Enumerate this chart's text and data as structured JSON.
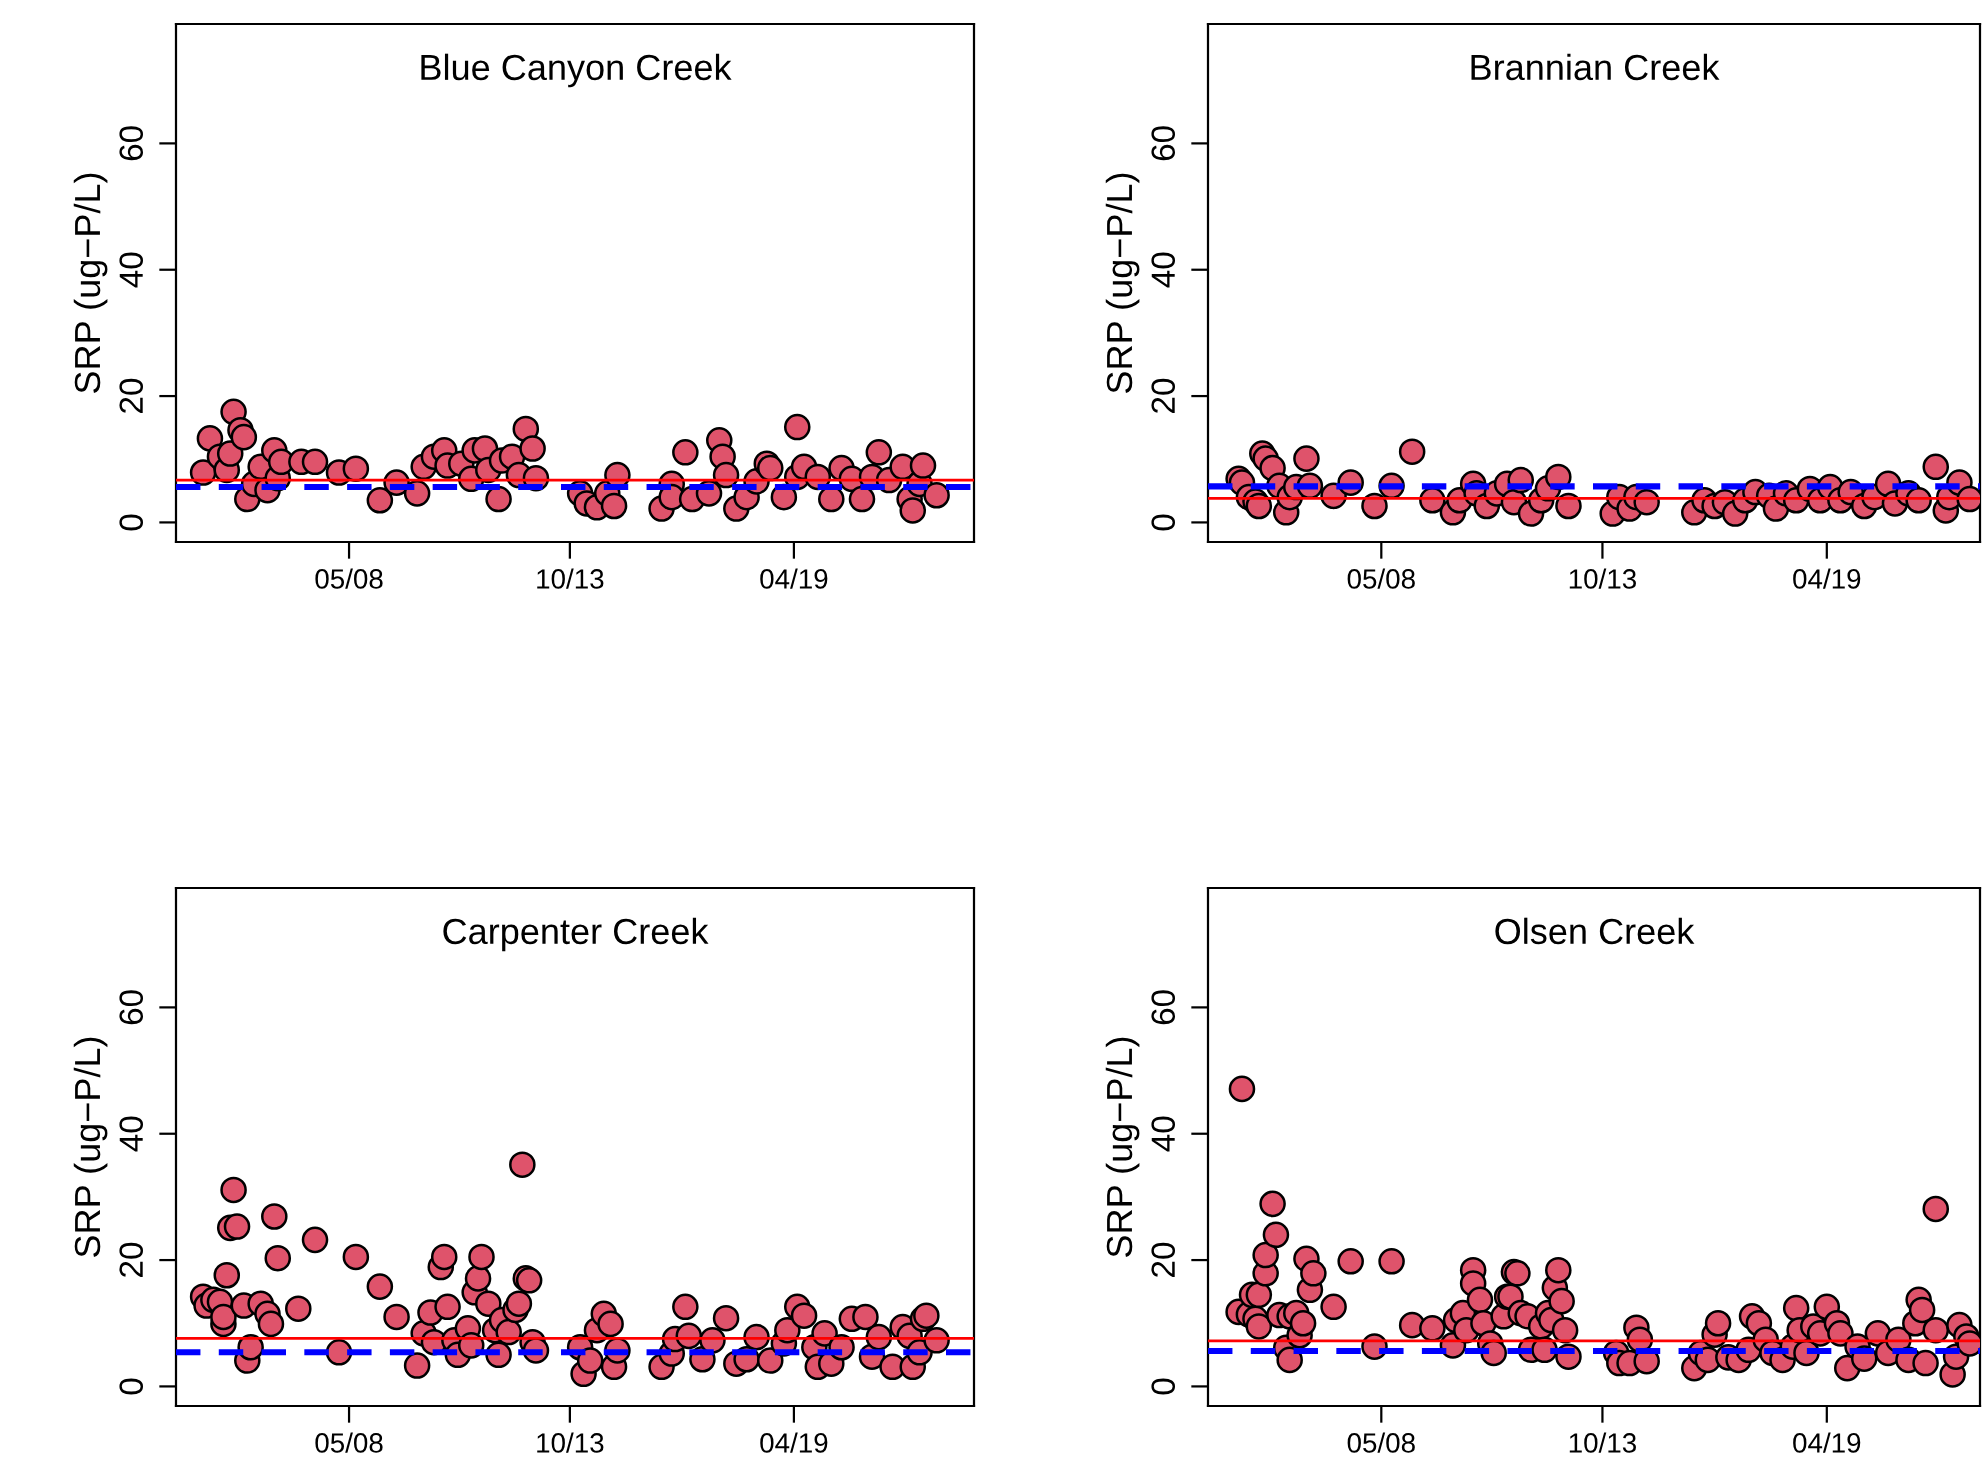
{
  "chart_data": [
    {
      "type": "scatter",
      "title": "Blue Canyon Creek",
      "ylabel": "SRP (ug−P/L)",
      "marker": "circle",
      "grid": false,
      "legend": false,
      "xlim": [
        "2004-02",
        "2023-09"
      ],
      "xticks": [
        {
          "value": "2008-05",
          "label": "05/08"
        },
        {
          "value": "2013-10",
          "label": "10/13"
        },
        {
          "value": "2019-04",
          "label": "04/19"
        }
      ],
      "ylim": [
        -3.1,
        78.9
      ],
      "yticks": [
        0,
        20,
        40,
        60
      ],
      "ref_lines": [
        {
          "axis": "y",
          "value": 6.7,
          "color": "#ff0000",
          "line_style": "solid"
        },
        {
          "axis": "y",
          "value": 5.6,
          "color": "#0000ff",
          "line_style": "dashed"
        }
      ],
      "series": [
        {
          "color": "#df536b",
          "x": [
            "2004-10",
            "2004-12",
            "2005-03",
            "2005-05",
            "2005-06",
            "2005-07",
            "2005-09",
            "2005-10",
            "2005-11",
            "2006-01",
            "2006-03",
            "2006-05",
            "2006-07",
            "2006-08",
            "2006-09",
            "2007-03",
            "2007-07",
            "2008-02",
            "2008-07",
            "2009-02",
            "2009-07",
            "2010-01",
            "2010-03",
            "2010-06",
            "2010-09",
            "2010-10",
            "2011-02",
            "2011-05",
            "2011-06",
            "2011-09",
            "2011-10",
            "2012-01",
            "2012-02",
            "2012-05",
            "2012-07",
            "2012-09",
            "2012-11",
            "2012-12",
            "2014-01",
            "2014-03",
            "2014-06",
            "2014-09",
            "2014-11",
            "2014-12",
            "2016-01",
            "2016-04",
            "2016-04",
            "2016-08",
            "2016-10",
            "2017-03",
            "2017-06",
            "2017-07",
            "2017-08",
            "2017-11",
            "2018-02",
            "2018-05",
            "2018-08",
            "2018-09",
            "2019-01",
            "2019-05",
            "2019-05",
            "2019-07",
            "2019-11",
            "2020-03",
            "2020-06",
            "2020-09",
            "2020-12",
            "2021-03",
            "2021-05",
            "2021-08",
            "2021-12",
            "2022-02",
            "2022-03",
            "2022-05",
            "2022-06",
            "2022-10"
          ],
          "values": [
            7.9,
            13.3,
            10.4,
            8.3,
            10.9,
            17.5,
            14.6,
            13.5,
            3.7,
            6.1,
            8.8,
            5.1,
            11.4,
            7.0,
            9.6,
            9.6,
            9.6,
            7.9,
            8.5,
            3.5,
            6.3,
            4.6,
            8.8,
            10.4,
            11.4,
            9.0,
            9.3,
            6.9,
            11.4,
            11.7,
            8.3,
            3.7,
            9.8,
            10.4,
            7.5,
            14.8,
            11.7,
            7.0,
            4.6,
            3.0,
            2.4,
            4.6,
            2.6,
            7.5,
            2.2,
            6.1,
            4.0,
            11.1,
            3.7,
            4.6,
            13.0,
            10.4,
            7.5,
            2.2,
            4.0,
            6.5,
            9.3,
            8.6,
            4.0,
            15.1,
            7.2,
            8.8,
            7.2,
            3.7,
            8.6,
            6.9,
            3.7,
            7.2,
            11.1,
            6.7,
            8.8,
            3.7,
            1.9,
            6.1,
            9.0,
            4.3
          ]
        }
      ]
    },
    {
      "type": "scatter",
      "title": "Brannian Creek",
      "ylabel": "SRP (ug−P/L)",
      "marker": "circle",
      "grid": false,
      "legend": false,
      "xlim": [
        "2004-02",
        "2023-01"
      ],
      "xticks": [
        {
          "value": "2008-05",
          "label": "05/08"
        },
        {
          "value": "2013-10",
          "label": "10/13"
        },
        {
          "value": "2019-04",
          "label": "04/19"
        }
      ],
      "ylim": [
        -3.1,
        78.9
      ],
      "yticks": [
        0,
        20,
        40,
        60
      ],
      "ref_lines": [
        {
          "axis": "y",
          "value": 3.8,
          "color": "#ff0000",
          "line_style": "solid"
        },
        {
          "axis": "y",
          "value": 5.7,
          "color": "#0000ff",
          "line_style": "dashed"
        }
      ],
      "series": [
        {
          "color": "#df536b",
          "x": [
            "2004-11",
            "2004-12",
            "2005-02",
            "2005-04",
            "2005-05",
            "2005-06",
            "2005-07",
            "2005-09",
            "2005-11",
            "2006-01",
            "2006-02",
            "2006-04",
            "2006-07",
            "2006-08",
            "2007-03",
            "2007-08",
            "2008-03",
            "2008-08",
            "2009-02",
            "2009-08",
            "2010-02",
            "2010-04",
            "2010-08",
            "2010-09",
            "2010-12",
            "2011-03",
            "2011-06",
            "2011-08",
            "2011-10",
            "2012-01",
            "2012-04",
            "2012-06",
            "2012-09",
            "2012-12",
            "2014-01",
            "2014-03",
            "2014-06",
            "2014-08",
            "2014-11",
            "2016-01",
            "2016-04",
            "2016-07",
            "2016-10",
            "2017-01",
            "2017-04",
            "2017-07",
            "2017-11",
            "2018-01",
            "2018-04",
            "2018-07",
            "2018-11",
            "2019-02",
            "2019-05",
            "2019-08",
            "2019-11",
            "2020-03",
            "2020-06",
            "2020-10",
            "2020-12",
            "2021-04",
            "2021-07",
            "2021-12",
            "2022-03",
            "2022-04",
            "2022-07",
            "2022-10"
          ],
          "values": [
            6.9,
            6.3,
            4.0,
            3.3,
            2.6,
            10.9,
            10.1,
            8.6,
            5.8,
            1.6,
            4.0,
            5.6,
            10.1,
            5.8,
            4.2,
            6.3,
            2.6,
            5.8,
            11.2,
            3.5,
            1.6,
            3.5,
            6.1,
            4.6,
            2.6,
            4.6,
            6.1,
            3.2,
            6.7,
            1.4,
            3.5,
            5.4,
            7.2,
            2.6,
            1.4,
            4.0,
            2.2,
            4.0,
            3.2,
            1.6,
            3.5,
            2.6,
            3.2,
            1.4,
            3.5,
            4.8,
            4.2,
            2.2,
            4.6,
            3.5,
            5.3,
            3.5,
            5.6,
            3.5,
            4.8,
            2.6,
            4.0,
            6.1,
            3.0,
            4.6,
            3.5,
            8.8,
            1.9,
            4.0,
            6.3,
            3.7
          ]
        }
      ]
    },
    {
      "type": "scatter",
      "title": "Carpenter Creek",
      "ylabel": "SRP (ug−P/L)",
      "marker": "circle",
      "grid": false,
      "legend": false,
      "xlim": [
        "2004-02",
        "2023-09"
      ],
      "xticks": [
        {
          "value": "2008-05",
          "label": "05/08"
        },
        {
          "value": "2013-10",
          "label": "10/13"
        },
        {
          "value": "2019-04",
          "label": "04/19"
        }
      ],
      "ylim": [
        -3.1,
        78.9
      ],
      "yticks": [
        0,
        20,
        40,
        60
      ],
      "ref_lines": [
        {
          "axis": "y",
          "value": 7.6,
          "color": "#ff0000",
          "line_style": "solid"
        },
        {
          "axis": "y",
          "value": 5.4,
          "color": "#0000ff",
          "line_style": "dashed"
        }
      ],
      "series": [
        {
          "color": "#df536b",
          "x": [
            "2004-10",
            "2004-11",
            "2005-01",
            "2005-03",
            "2005-04",
            "2005-04",
            "2005-05",
            "2005-06",
            "2005-07",
            "2005-08",
            "2005-10",
            "2005-11",
            "2005-12",
            "2006-03",
            "2006-05",
            "2006-06",
            "2006-07",
            "2006-08",
            "2007-02",
            "2007-07",
            "2008-02",
            "2008-07",
            "2009-02",
            "2009-07",
            "2010-01",
            "2010-03",
            "2010-05",
            "2010-06",
            "2010-08",
            "2010-09",
            "2010-10",
            "2010-12",
            "2011-01",
            "2011-04",
            "2011-05",
            "2011-06",
            "2011-07",
            "2011-08",
            "2011-10",
            "2011-12",
            "2012-01",
            "2012-02",
            "2012-04",
            "2012-06",
            "2012-07",
            "2012-08",
            "2012-09",
            "2012-10",
            "2012-11",
            "2012-12",
            "2014-01",
            "2014-02",
            "2014-04",
            "2014-06",
            "2014-08",
            "2014-10",
            "2014-11",
            "2014-12",
            "2016-01",
            "2016-04",
            "2016-05",
            "2016-08",
            "2016-09",
            "2017-01",
            "2017-04",
            "2017-08",
            "2017-11",
            "2018-02",
            "2018-05",
            "2018-09",
            "2019-01",
            "2019-02",
            "2019-05",
            "2019-07",
            "2019-10",
            "2019-11",
            "2020-01",
            "2020-03",
            "2020-06",
            "2020-09",
            "2021-01",
            "2021-03",
            "2021-05",
            "2021-09",
            "2021-12",
            "2022-02",
            "2022-03",
            "2022-05",
            "2022-06",
            "2022-07",
            "2022-10"
          ],
          "values": [
            14.2,
            12.8,
            13.7,
            13.4,
            9.9,
            11.0,
            17.6,
            25.1,
            31.1,
            25.3,
            12.8,
            4.1,
            6.2,
            13.1,
            11.5,
            9.9,
            26.9,
            20.3,
            12.3,
            23.2,
            5.4,
            20.5,
            15.8,
            11.0,
            3.3,
            8.4,
            11.7,
            7.0,
            18.9,
            20.5,
            12.6,
            7.3,
            5.0,
            9.2,
            6.5,
            14.9,
            17.1,
            20.5,
            13.1,
            8.9,
            5.0,
            10.5,
            8.6,
            12.1,
            13.1,
            35.1,
            17.1,
            16.8,
            7.0,
            5.7,
            6.2,
            2.0,
            4.1,
            8.9,
            11.5,
            9.9,
            3.1,
            5.7,
            3.1,
            5.2,
            7.5,
            12.6,
            8.0,
            4.3,
            7.3,
            10.8,
            3.6,
            4.3,
            7.8,
            4.1,
            6.8,
            8.9,
            12.6,
            11.2,
            6.2,
            3.1,
            8.4,
            3.6,
            6.2,
            10.7,
            11.0,
            4.7,
            7.8,
            3.1,
            9.4,
            8.0,
            3.1,
            5.4,
            10.7,
            11.2,
            7.3
          ]
        }
      ]
    },
    {
      "type": "scatter",
      "title": "Olsen Creek",
      "ylabel": "SRP (ug−P/L)",
      "marker": "circle",
      "grid": false,
      "legend": false,
      "xlim": [
        "2004-02",
        "2023-01"
      ],
      "xticks": [
        {
          "value": "2008-05",
          "label": "05/08"
        },
        {
          "value": "2013-10",
          "label": "10/13"
        },
        {
          "value": "2019-04",
          "label": "04/19"
        }
      ],
      "ylim": [
        -3.1,
        78.9
      ],
      "yticks": [
        0,
        20,
        40,
        60
      ],
      "ref_lines": [
        {
          "axis": "y",
          "value": 7.2,
          "color": "#ff0000",
          "line_style": "solid"
        },
        {
          "axis": "y",
          "value": 5.6,
          "color": "#0000ff",
          "line_style": "dashed"
        }
      ],
      "series": [
        {
          "color": "#df536b",
          "x": [
            "2004-11",
            "2004-12",
            "2005-02",
            "2005-04",
            "2005-03",
            "2005-05",
            "2005-05",
            "2005-07",
            "2005-07",
            "2005-10",
            "2005-09",
            "2005-11",
            "2006-01",
            "2006-02",
            "2006-02",
            "2006-04",
            "2006-05",
            "2006-06",
            "2006-07",
            "2006-08",
            "2006-09",
            "2007-03",
            "2007-08",
            "2008-03",
            "2008-08",
            "2009-02",
            "2009-08",
            "2010-02",
            "2010-03",
            "2010-05",
            "2010-06",
            "2010-08",
            "2010-08",
            "2010-10",
            "2010-11",
            "2011-01",
            "2011-02",
            "2011-05",
            "2011-06",
            "2011-07",
            "2011-08",
            "2011-09",
            "2011-10",
            "2011-12",
            "2012-01",
            "2012-04",
            "2012-05",
            "2012-06",
            "2012-07",
            "2012-08",
            "2012-09",
            "2012-10",
            "2012-11",
            "2012-12",
            "2014-02",
            "2014-03",
            "2014-06",
            "2014-08",
            "2014-09",
            "2014-11",
            "2016-01",
            "2016-03",
            "2016-05",
            "2016-07",
            "2016-08",
            "2016-11",
            "2017-02",
            "2017-05",
            "2017-06",
            "2017-08",
            "2017-10",
            "2017-12",
            "2018-03",
            "2018-06",
            "2018-07",
            "2018-08",
            "2018-10",
            "2018-12",
            "2019-02",
            "2019-04",
            "2019-07",
            "2019-08",
            "2019-10",
            "2020-01",
            "2020-03",
            "2020-07",
            "2020-10",
            "2021-01",
            "2021-04",
            "2021-06",
            "2021-07",
            "2021-08",
            "2021-09",
            "2021-12",
            "2021-12",
            "2022-05",
            "2022-06",
            "2022-07",
            "2022-09",
            "2022-10"
          ],
          "values": [
            11.8,
            47.1,
            11.4,
            10.7,
            14.5,
            9.5,
            14.5,
            17.9,
            20.8,
            24.0,
            28.9,
            11.3,
            6.1,
            4.2,
            11.1,
            11.6,
            8.1,
            10.0,
            20.2,
            15.3,
            17.9,
            12.6,
            19.8,
            6.3,
            19.8,
            9.7,
            9.2,
            6.5,
            10.5,
            11.6,
            8.9,
            18.4,
            16.3,
            13.7,
            10.0,
            6.8,
            5.3,
            11.1,
            14.2,
            14.2,
            18.1,
            17.9,
            11.6,
            11.1,
            5.8,
            9.5,
            5.8,
            11.6,
            10.5,
            15.6,
            18.4,
            13.5,
            8.9,
            4.7,
            5.3,
            3.7,
            3.7,
            9.3,
            7.4,
            4.0,
            2.9,
            5.3,
            4.2,
            8.2,
            10.0,
            4.6,
            4.2,
            5.8,
            11.1,
            10.0,
            7.4,
            5.3,
            4.2,
            6.3,
            12.4,
            8.9,
            5.3,
            9.5,
            8.4,
            12.6,
            10.0,
            8.4,
            2.9,
            6.3,
            4.4,
            8.4,
            5.3,
            7.4,
            4.2,
            10.0,
            13.7,
            12.1,
            3.7,
            8.9,
            28.1,
            1.9,
            4.7,
            9.7,
            7.9,
            6.8
          ]
        }
      ]
    }
  ]
}
